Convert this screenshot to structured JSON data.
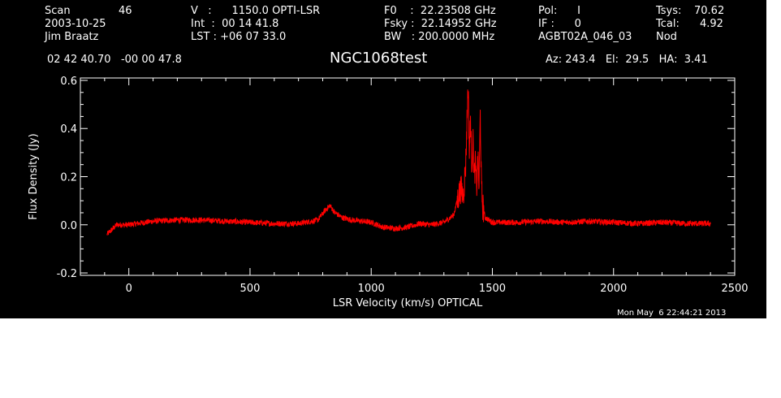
{
  "header": {
    "col1": {
      "scan_label": "Scan",
      "scan_value": "46",
      "date": "2003-10-25",
      "observer": "Jim Braatz"
    },
    "col2": {
      "v_line": "V   :      1150.0 OPTI-LSR",
      "int_line": "Int  :  00 14 41.8",
      "lst_line": "LST : +06 07 33.0"
    },
    "col3": {
      "f0_line": "F0    :  22.23508 GHz",
      "fsky_line": "Fsky :  22.14952 GHz",
      "bw_line": "BW   : 200.0000 MHz"
    },
    "col4": {
      "pol_line": "Pol:      I",
      "if_line": "IF :      0",
      "project": "AGBT02A_046_03"
    },
    "col5": {
      "tsys_label": "Tsys:",
      "tsys_value": "70.62",
      "tcal_label": "Tcal:",
      "tcal_value": "4.92",
      "mode": "Nod"
    },
    "coords": "02 42 40.70   -00 00 47.8",
    "azel": "Az: 243.4   El:  29.5   HA:  3.41",
    "source": "NGC1068test"
  },
  "timestamp": "Mon May  6 22:44:21 2013",
  "colors": {
    "background": "#000000",
    "axes": "#ffffff",
    "trace": "#ff0000"
  },
  "chart_data": {
    "type": "line",
    "title": "NGC1068test",
    "xlabel": "LSR Velocity (km/s) OPTICAL",
    "ylabel": "Flux Density (Jy)",
    "xlim": [
      -200,
      2500
    ],
    "ylim": [
      -0.21,
      0.61
    ],
    "xticks": [
      {
        "value": 0,
        "label": "0"
      },
      {
        "value": 500,
        "label": "500"
      },
      {
        "value": 1000,
        "label": "1000"
      },
      {
        "value": 1500,
        "label": "1500"
      },
      {
        "value": 2000,
        "label": "2000"
      },
      {
        "value": 2500,
        "label": "2500"
      }
    ],
    "yticks": [
      {
        "value": -0.2,
        "label": "-0.2"
      },
      {
        "value": 0.0,
        "label": "0.0"
      },
      {
        "value": 0.2,
        "label": "0.2"
      },
      {
        "value": 0.4,
        "label": "0.4"
      },
      {
        "value": 0.6,
        "label": "0.6"
      }
    ],
    "grid": false,
    "series": [
      {
        "x": [
          -90,
          -50,
          0,
          100,
          200,
          300,
          400,
          500,
          600,
          700,
          780,
          810,
          830,
          850,
          880,
          920,
          960,
          1000,
          1050,
          1100,
          1150,
          1200,
          1250,
          1300,
          1340,
          1360,
          1370,
          1380,
          1390,
          1400,
          1405,
          1410,
          1415,
          1420,
          1425,
          1430,
          1435,
          1440,
          1445,
          1450,
          1455,
          1460,
          1470,
          1500,
          1600,
          1700,
          1800,
          1900,
          2000,
          2100,
          2200,
          2300,
          2400
        ],
        "y": [
          -0.04,
          0.0,
          0.0,
          0.015,
          0.02,
          0.02,
          0.015,
          0.01,
          0.005,
          0.005,
          0.02,
          0.06,
          0.08,
          0.05,
          0.03,
          0.02,
          0.015,
          0.01,
          -0.01,
          -0.015,
          -0.01,
          0.005,
          0.0,
          0.01,
          0.04,
          0.12,
          0.15,
          0.12,
          0.25,
          0.59,
          0.3,
          0.45,
          0.25,
          0.35,
          0.2,
          0.25,
          0.15,
          0.28,
          0.15,
          0.46,
          0.15,
          0.08,
          0.03,
          0.01,
          0.01,
          0.015,
          0.01,
          0.015,
          0.01,
          0.005,
          0.01,
          0.005,
          0.005
        ]
      }
    ]
  }
}
